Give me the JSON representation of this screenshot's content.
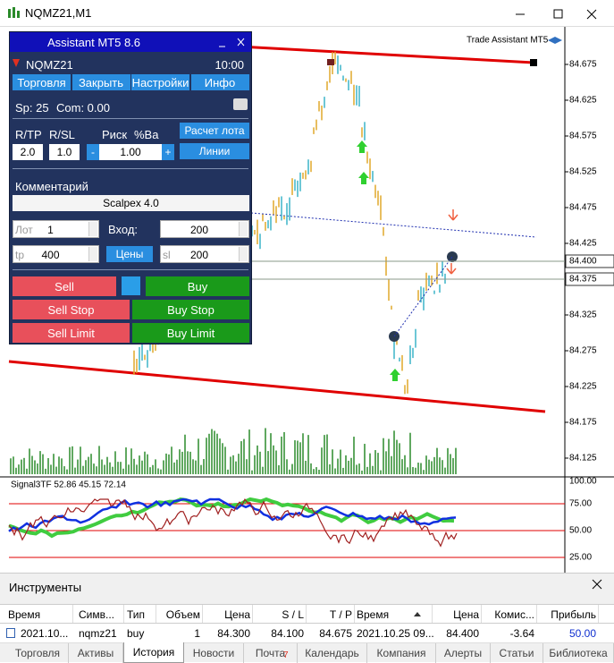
{
  "window": {
    "title": "NQMZ21,M1"
  },
  "chart": {
    "badge": "Trade Assistant MT5",
    "price_labels": [
      "84.675",
      "84.625",
      "84.575",
      "84.525",
      "84.475",
      "84.425",
      "84.325",
      "84.275",
      "84.225",
      "84.175",
      "84.125"
    ],
    "current_prices": [
      "84.400",
      "84.375"
    ],
    "indicator": {
      "title": "Signal3TF 52.86 45.15 72.14",
      "levels": [
        "100.00",
        "75.00",
        "50.00",
        "25.00"
      ]
    }
  },
  "panel": {
    "title": "Assistant MT5 8.6",
    "symbol": "NQMZ21",
    "time": "10:00",
    "tabs": [
      "Торговля",
      "Закрыть",
      "Настройки",
      "Инфо"
    ],
    "spread": "Sp: 25",
    "commission": "Com: 0.00",
    "labels": [
      "R/TP",
      "R/SL",
      "Риск",
      "%Ba"
    ],
    "calc_button": "Расчет лота",
    "rtp": "2.0",
    "rsl": "1.0",
    "minus": "-",
    "risk": "1.00",
    "plus": "+",
    "lines_button": "Линии",
    "comment_label": "Комментарий",
    "comment": "Scalpex 4.0",
    "lot_label": "Лот",
    "lot": "1",
    "entry_label": "Вход:",
    "entry": "200",
    "tp_label": "tp",
    "tp": "400",
    "prices_button": "Цены",
    "sl_label": "sl",
    "sl": "200",
    "buttons": [
      "Sell",
      "Buy",
      "Sell Stop",
      "Buy Stop",
      "Sell Limit",
      "Buy Limit"
    ]
  },
  "toolbox": {
    "title": "Инструменты",
    "columns": [
      "Время",
      "Симв...",
      "Тип",
      "Объем",
      "Цена",
      "S / L",
      "T / P",
      "Время",
      "Цена",
      "Комис...",
      "Прибыль"
    ],
    "rows": [
      [
        "2021.10...",
        "nqmz21",
        "buy",
        "1",
        "84.300",
        "84.100",
        "84.675",
        "2021.10.25 09...",
        "84.400",
        "-3.64",
        "50.00"
      ]
    ],
    "tabs": [
      "Торговля",
      "Активы",
      "История",
      "Новости",
      "Почта",
      "Календарь",
      "Компания",
      "Алерты",
      "Статьи",
      "Библиотека"
    ],
    "mail_badge": "7"
  }
}
